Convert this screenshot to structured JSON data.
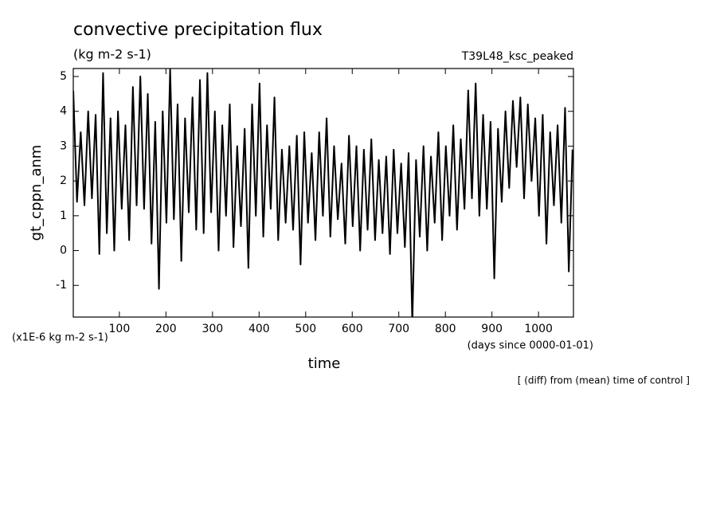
{
  "chart_data": {
    "type": "line",
    "title": "convective precipitation flux",
    "subtitle": "(kg m-2 s-1)",
    "run_label": "T39L48_ksc_peaked",
    "y_label": "gt_cppn_anm",
    "x_label": "time",
    "y_unit_note": "(x1E-6 kg m-2 s-1)",
    "x_unit_note": "(days since 0000-01-01)",
    "footnote": "[ (diff) from (mean) time of control ]",
    "color": "#000000",
    "xlim": [
      1,
      1075
    ],
    "ylim": [
      -1.91,
      5.23
    ],
    "xticks": [
      100,
      200,
      300,
      400,
      500,
      600,
      700,
      800,
      900,
      1000
    ],
    "yticks": [
      -1,
      0,
      1,
      2,
      3,
      4,
      5
    ],
    "x": [
      1,
      9,
      17,
      25,
      33,
      41,
      49,
      57,
      65,
      73,
      81,
      89,
      97,
      105,
      113,
      121,
      129,
      137,
      145,
      153,
      161,
      169,
      177,
      185,
      193,
      201,
      209,
      217,
      225,
      233,
      241,
      249,
      257,
      265,
      273,
      281,
      289,
      297,
      305,
      313,
      321,
      329,
      337,
      345,
      353,
      361,
      369,
      377,
      385,
      393,
      401,
      409,
      417,
      425,
      433,
      441,
      449,
      457,
      465,
      473,
      481,
      489,
      497,
      505,
      513,
      521,
      529,
      537,
      545,
      553,
      561,
      569,
      577,
      585,
      593,
      601,
      609,
      617,
      625,
      633,
      641,
      649,
      657,
      665,
      673,
      681,
      689,
      697,
      705,
      713,
      721,
      729,
      737,
      745,
      753,
      761,
      769,
      777,
      785,
      793,
      801,
      809,
      817,
      825,
      833,
      841,
      849,
      857,
      865,
      873,
      881,
      889,
      897,
      905,
      913,
      921,
      929,
      937,
      945,
      953,
      961,
      969,
      977,
      985,
      993,
      1001,
      1009,
      1017,
      1025,
      1033,
      1041,
      1049,
      1057,
      1065,
      1073
    ],
    "values": [
      4.6,
      1.4,
      3.4,
      1.3,
      4.0,
      1.5,
      3.9,
      -0.1,
      5.1,
      0.5,
      3.8,
      0.0,
      4.0,
      1.2,
      3.6,
      0.3,
      4.7,
      1.3,
      5.0,
      1.2,
      4.5,
      0.2,
      3.7,
      -1.1,
      4.0,
      0.8,
      5.2,
      0.9,
      4.2,
      -0.3,
      3.8,
      1.1,
      4.4,
      0.6,
      4.9,
      0.5,
      5.1,
      1.1,
      4.0,
      0.0,
      3.6,
      1.0,
      4.2,
      0.1,
      3.0,
      0.7,
      3.5,
      -0.5,
      4.2,
      1.0,
      4.8,
      0.4,
      3.6,
      1.2,
      4.4,
      0.3,
      2.9,
      0.8,
      3.0,
      0.6,
      3.3,
      -0.4,
      3.4,
      0.8,
      2.8,
      0.3,
      3.4,
      1.0,
      3.8,
      0.4,
      3.0,
      0.9,
      2.5,
      0.2,
      3.3,
      0.7,
      3.0,
      0.0,
      2.9,
      0.6,
      3.2,
      0.3,
      2.6,
      0.5,
      2.7,
      -0.1,
      2.9,
      0.5,
      2.5,
      0.1,
      2.8,
      -2.1,
      2.6,
      0.4,
      3.0,
      0.0,
      2.7,
      0.8,
      3.4,
      0.3,
      3.0,
      1.0,
      3.6,
      0.6,
      3.2,
      1.2,
      4.6,
      1.5,
      4.8,
      1.0,
      3.9,
      1.2,
      3.7,
      -0.8,
      3.5,
      1.4,
      4.0,
      1.8,
      4.3,
      2.4,
      4.4,
      1.5,
      4.2,
      2.0,
      3.8,
      1.0,
      3.9,
      0.2,
      3.4,
      1.3,
      3.6,
      0.8,
      4.1,
      -0.6,
      2.9
    ]
  }
}
